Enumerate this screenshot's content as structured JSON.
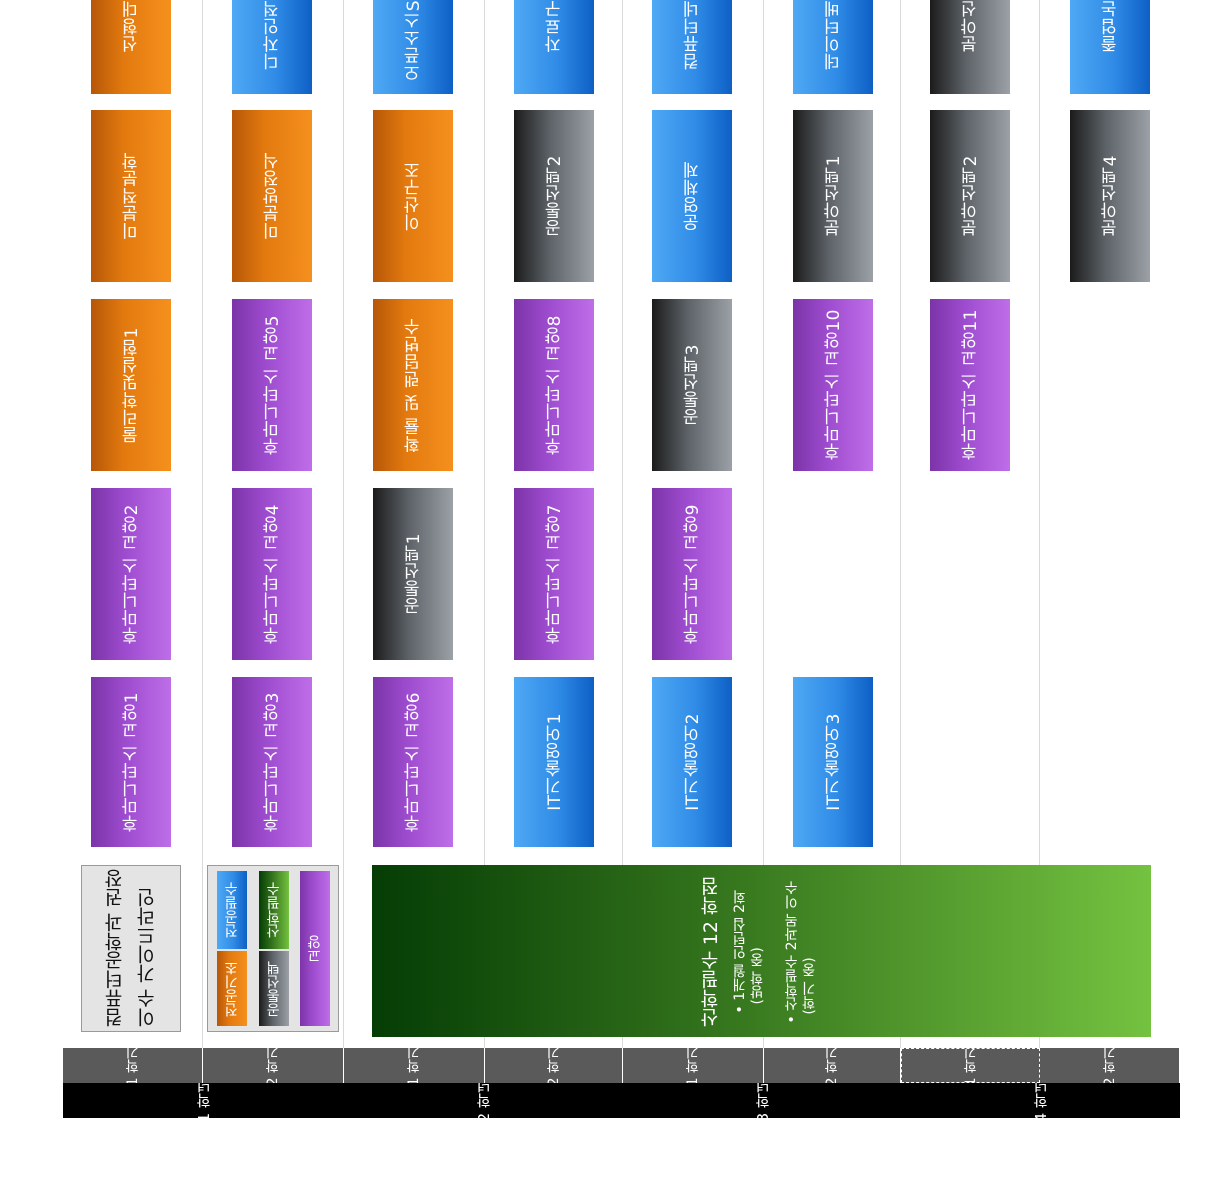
{
  "title": {
    "line1": "컴퓨터공학과 권장",
    "line2": "이수 가이드라인"
  },
  "legend": {
    "major_basic": "전공기초",
    "major_required": "전공필수",
    "common_elective": "공통선택",
    "industry_required": "산학필수",
    "liberal_arts": "교양"
  },
  "industry_block": {
    "heading": "산학필수 12 학점",
    "bullet1": "1개월 인턴십 2회",
    "bullet1_sub": "(방학 중)",
    "bullet2": "산학필수 2과목 이수",
    "bullet2_sub": "(학기 중)"
  },
  "semester_label": "학기",
  "year_label": "학년",
  "years": [
    {
      "num": "1",
      "semesters": [
        "1",
        "2"
      ]
    },
    {
      "num": "2",
      "semesters": [
        "1",
        "2"
      ]
    },
    {
      "num": "3",
      "semesters": [
        "1",
        "2"
      ]
    },
    {
      "num": "4",
      "semesters": [
        "1",
        "2"
      ]
    }
  ],
  "courses": {
    "y1s1": [
      "후마니타스 교양1",
      "후마니타스 교양2",
      "물리학및실험1",
      "미분적분학",
      "선형대"
    ],
    "y1s2": [
      "후마니타스 교양3",
      "후마니타스 교양4",
      "후마니타스 교양5",
      "미분방정식",
      "디자인적"
    ],
    "y2s1": [
      "후마니타스 교양6",
      "공통선택1",
      "확률 및 랜덤변수",
      "이산구조",
      "오픈소스S"
    ],
    "y2s2": [
      "IT기술영어1",
      "후마니타스 교양7",
      "후마니타스 교양8",
      "공통선택2",
      "자료구"
    ],
    "y3s1": [
      "IT기술영어2",
      "후마니타스 교양9",
      "공통선택3",
      "운영체제",
      "컴퓨터네"
    ],
    "y3s2": [
      "IT기술영어3",
      "후마니타스 교양10",
      "분야선택1",
      "데이터베"
    ],
    "y4s1": [
      "후마니타스 교양11",
      "분야선택2",
      "분야선"
    ],
    "y4s2": [
      "분야선택4",
      "졸업논"
    ]
  },
  "colors": {
    "major_basic": "#f5901d",
    "major_required": "#2f8be6",
    "common_elective": "#5d6368",
    "industry_required": "#74c240",
    "liberal_arts": "#9f4dd0",
    "semester_bar": "#5a5a5a",
    "year_bar": "#000000"
  }
}
